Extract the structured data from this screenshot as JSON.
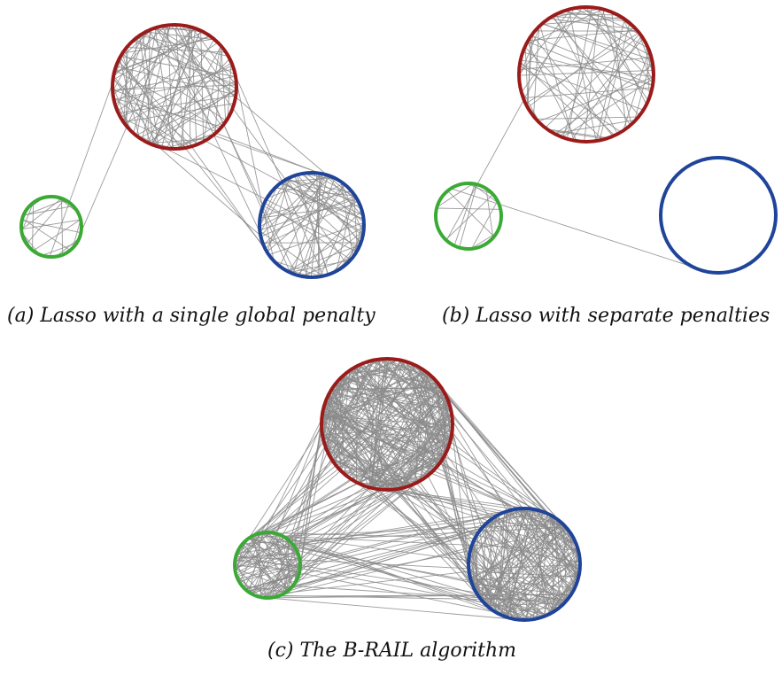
{
  "captions": {
    "a": "(a) Lasso with a single global penalty",
    "b": "(b) Lasso with separate penalties",
    "c": "(c) The B-RAIL algorithm"
  },
  "colors": {
    "red_cluster": "#9b1b1b",
    "blue_cluster": "#1f449a",
    "green_cluster": "#3aaa35",
    "edge": "#8a8a8a",
    "background": "#ffffff"
  },
  "panels": [
    {
      "id": "a",
      "clusters": [
        "red",
        "blue",
        "green"
      ],
      "within_edges": {
        "red": 110,
        "blue": 90,
        "green": 22
      },
      "between_edges": {
        "red-blue": 14,
        "red-green": 2,
        "green-blue": 0
      }
    },
    {
      "id": "b",
      "clusters": [
        "red",
        "blue",
        "green"
      ],
      "within_edges": {
        "red": 85,
        "blue": 0,
        "green": 14
      },
      "between_edges": {
        "red-blue": 0,
        "red-green": 1,
        "green-blue": 1
      }
    },
    {
      "id": "c",
      "clusters": [
        "red",
        "blue",
        "green"
      ],
      "within_edges": {
        "red": 260,
        "blue": 200,
        "green": 80
      },
      "between_edges": {
        "red-blue": 55,
        "red-green": 40,
        "green-blue": 35
      }
    }
  ]
}
